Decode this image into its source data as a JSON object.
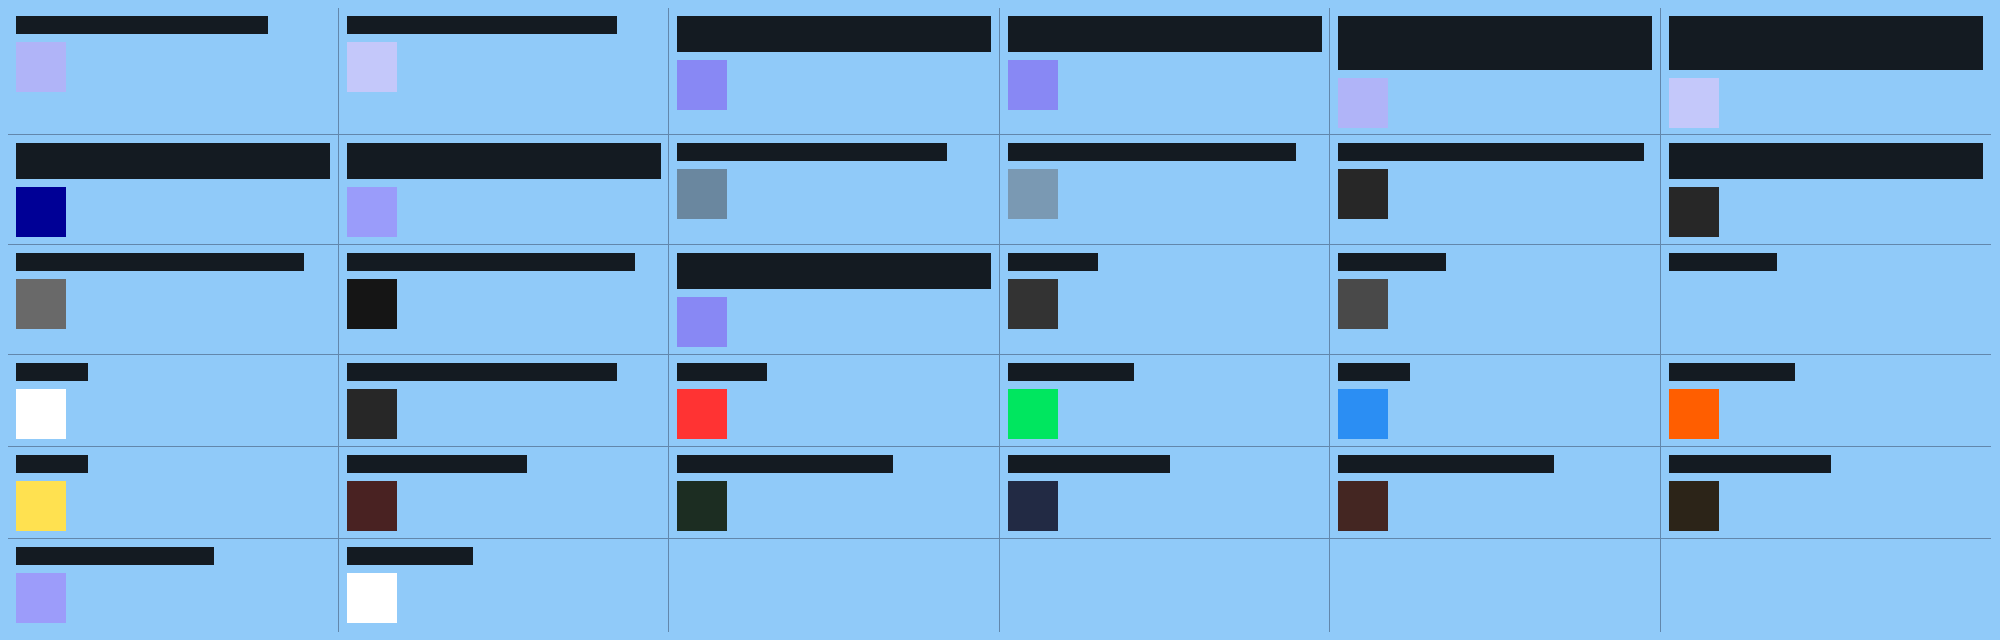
{
  "cells": [
    {
      "id": "r1c1",
      "label": "",
      "color": "#b0b4f8"
    },
    {
      "id": "r1c2",
      "label": "",
      "color": "#c4c8fa"
    },
    {
      "id": "r1c3",
      "label": "",
      "color": "#8888f4"
    },
    {
      "id": "r1c4",
      "label": "",
      "color": "#8888f4"
    },
    {
      "id": "r1c5",
      "label": "",
      "color": "#b0b4f8"
    },
    {
      "id": "r1c6",
      "label": "",
      "color": "#c4c8fa"
    },
    {
      "id": "r2c1",
      "label": "",
      "color": "#000096"
    },
    {
      "id": "r2c2",
      "label": "",
      "color": "#9a9cfa"
    },
    {
      "id": "r2c3",
      "label": "",
      "color": "#6a879f"
    },
    {
      "id": "r2c4",
      "label": "",
      "color": "#7a99b3"
    },
    {
      "id": "r2c5",
      "label": "",
      "color": "#272727"
    },
    {
      "id": "r2c6",
      "label": "",
      "color": "#272727"
    },
    {
      "id": "r3c1",
      "label": "",
      "color": "#696969"
    },
    {
      "id": "r3c2",
      "label": "",
      "color": "#151515"
    },
    {
      "id": "r3c3",
      "label": "",
      "color": "#8888f4"
    },
    {
      "id": "r3c4",
      "label": "",
      "color": "#333333"
    },
    {
      "id": "r3c5",
      "label": "",
      "color": "#494949"
    },
    {
      "id": "r3c6",
      "label": "",
      "color": null
    },
    {
      "id": "r4c1",
      "label": "",
      "color": "#ffffff"
    },
    {
      "id": "r4c2",
      "label": "",
      "color": "#272727"
    },
    {
      "id": "r4c3",
      "label": "",
      "color": "#ff3333"
    },
    {
      "id": "r4c4",
      "label": "",
      "color": "#00e65f"
    },
    {
      "id": "r4c5",
      "label": "",
      "color": "#2b8ef3"
    },
    {
      "id": "r4c6",
      "label": "",
      "color": "#ff5e00"
    },
    {
      "id": "r5c1",
      "label": "",
      "color": "#ffe150"
    },
    {
      "id": "r5c2",
      "label": "",
      "color": "#492222"
    },
    {
      "id": "r5c3",
      "label": "",
      "color": "#1c2d22"
    },
    {
      "id": "r5c4",
      "label": "",
      "color": "#222a44"
    },
    {
      "id": "r5c5",
      "label": "",
      "color": "#442622"
    },
    {
      "id": "r5c6",
      "label": "",
      "color": "#2c2418"
    },
    {
      "id": "r6c1",
      "label": "",
      "color": "#9c9cfa"
    },
    {
      "id": "r6c2",
      "label": "",
      "color": "#ffffff"
    }
  ]
}
